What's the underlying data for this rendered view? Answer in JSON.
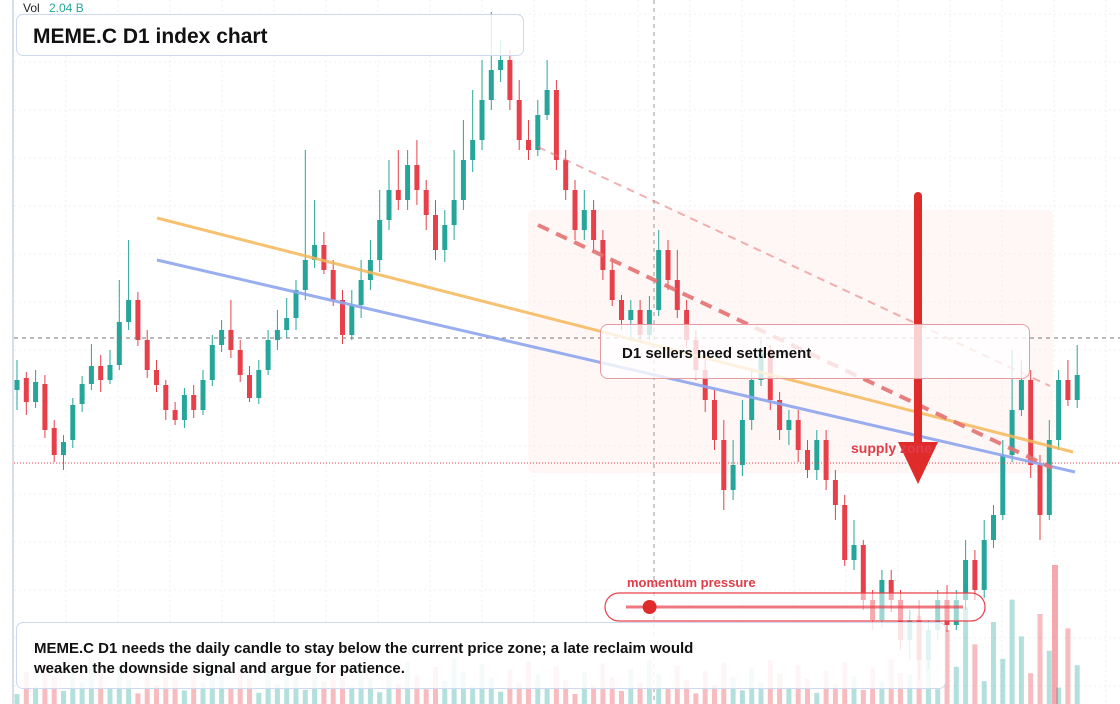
{
  "volume": {
    "label": "Vol",
    "value": "2.04 B"
  },
  "title": "MEME.C D1 index chart",
  "callout": "D1 sellers need settlement",
  "zone_label": "supply zone",
  "momentum_label": "momentum pressure",
  "note": "MEME.C D1 needs the daily candle to stay below the current price zone; a late reclaim would weaken the downside signal and argue for patience.",
  "colors": {
    "up": "#26a69a",
    "down": "#e8404b",
    "orange_trend": "#f5b85a",
    "blue_trend": "#8fa6ee",
    "arrow": "#e02b2b",
    "dashed": "#e57373"
  },
  "icons": {
    "arrow": "down-arrow-icon",
    "slider_knob": "momentum-knob-icon"
  },
  "momentum_level": 0.07,
  "chart_data": {
    "type": "candlestick",
    "symbol": "MEME.C",
    "timeframe": "D1",
    "grid": true,
    "y_reference": {
      "current_price": 338,
      "supply_line": 463
    },
    "candles_description": "daily OHLC with volume; values in price-axis units (relative scale)",
    "candles": [
      [
        0,
        390,
        380,
        410,
        360
      ],
      [
        1,
        378,
        402,
        415,
        372
      ],
      [
        2,
        402,
        382,
        408,
        370
      ],
      [
        3,
        384,
        430,
        438,
        375
      ],
      [
        4,
        428,
        455,
        462,
        420
      ],
      [
        5,
        455,
        442,
        470,
        435
      ],
      [
        6,
        440,
        405,
        448,
        398
      ],
      [
        7,
        404,
        384,
        412,
        376
      ],
      [
        8,
        384,
        366,
        390,
        344
      ],
      [
        9,
        366,
        380,
        392,
        355
      ],
      [
        10,
        380,
        365,
        384,
        350
      ],
      [
        11,
        365,
        322,
        370,
        280
      ],
      [
        12,
        322,
        300,
        330,
        240
      ],
      [
        13,
        300,
        340,
        346,
        292
      ],
      [
        14,
        340,
        370,
        378,
        330
      ],
      [
        15,
        370,
        385,
        392,
        360
      ],
      [
        16,
        385,
        410,
        420,
        380
      ],
      [
        17,
        410,
        420,
        425,
        402
      ],
      [
        18,
        420,
        395,
        428,
        388
      ],
      [
        19,
        395,
        410,
        418,
        385
      ],
      [
        20,
        410,
        380,
        415,
        370
      ],
      [
        21,
        380,
        345,
        386,
        335
      ],
      [
        22,
        345,
        330,
        352,
        320
      ],
      [
        23,
        330,
        350,
        358,
        300
      ],
      [
        24,
        350,
        375,
        382,
        340
      ],
      [
        25,
        375,
        398,
        402,
        366
      ],
      [
        26,
        398,
        370,
        404,
        360
      ],
      [
        27,
        370,
        340,
        375,
        330
      ],
      [
        28,
        340,
        330,
        350,
        310
      ],
      [
        29,
        330,
        318,
        338,
        298
      ],
      [
        30,
        318,
        290,
        330,
        280
      ],
      [
        31,
        290,
        260,
        300,
        150
      ],
      [
        32,
        260,
        245,
        268,
        200
      ],
      [
        33,
        245,
        270,
        274,
        232
      ],
      [
        34,
        270,
        300,
        306,
        260
      ],
      [
        35,
        300,
        335,
        344,
        290
      ],
      [
        36,
        335,
        305,
        340,
        290
      ],
      [
        37,
        305,
        280,
        318,
        260
      ],
      [
        38,
        280,
        260,
        290,
        240
      ],
      [
        39,
        260,
        220,
        272,
        190
      ],
      [
        40,
        220,
        190,
        230,
        160
      ],
      [
        41,
        190,
        200,
        210,
        150
      ],
      [
        42,
        200,
        165,
        210,
        150
      ],
      [
        43,
        165,
        190,
        205,
        140
      ],
      [
        44,
        190,
        215,
        230,
        180
      ],
      [
        45,
        215,
        250,
        260,
        200
      ],
      [
        46,
        250,
        225,
        262,
        210
      ],
      [
        47,
        225,
        200,
        240,
        150
      ],
      [
        48,
        200,
        160,
        210,
        120
      ],
      [
        49,
        160,
        140,
        172,
        90
      ],
      [
        50,
        140,
        100,
        150,
        60
      ],
      [
        51,
        100,
        70,
        110,
        12
      ],
      [
        52,
        70,
        60,
        82,
        40
      ],
      [
        53,
        60,
        100,
        110,
        50
      ],
      [
        54,
        100,
        140,
        150,
        80
      ],
      [
        55,
        140,
        150,
        160,
        120
      ],
      [
        56,
        150,
        115,
        156,
        100
      ],
      [
        57,
        115,
        90,
        120,
        60
      ],
      [
        58,
        90,
        160,
        170,
        80
      ],
      [
        59,
        160,
        190,
        200,
        150
      ],
      [
        60,
        190,
        230,
        240,
        180
      ],
      [
        61,
        230,
        210,
        240,
        190
      ],
      [
        62,
        210,
        240,
        252,
        200
      ],
      [
        63,
        240,
        270,
        280,
        230
      ],
      [
        64,
        270,
        300,
        306,
        260
      ],
      [
        65,
        300,
        320,
        330,
        295
      ],
      [
        66,
        320,
        310,
        340,
        300
      ],
      [
        67,
        310,
        335,
        342,
        300
      ],
      [
        68,
        335,
        310,
        340,
        296
      ],
      [
        69,
        310,
        250,
        316,
        230
      ],
      [
        70,
        250,
        280,
        290,
        240
      ],
      [
        71,
        280,
        310,
        318,
        250
      ],
      [
        72,
        310,
        340,
        348,
        300
      ],
      [
        73,
        340,
        370,
        380,
        330
      ],
      [
        74,
        370,
        400,
        412,
        355
      ],
      [
        75,
        400,
        440,
        450,
        390
      ],
      [
        76,
        440,
        490,
        510,
        420
      ],
      [
        77,
        490,
        465,
        500,
        440
      ],
      [
        78,
        465,
        420,
        476,
        400
      ],
      [
        79,
        420,
        380,
        430,
        370
      ],
      [
        80,
        380,
        350,
        386,
        340
      ],
      [
        81,
        350,
        400,
        410,
        345
      ],
      [
        82,
        400,
        430,
        440,
        392
      ],
      [
        83,
        430,
        420,
        445,
        410
      ],
      [
        84,
        420,
        450,
        462,
        410
      ],
      [
        85,
        450,
        470,
        478,
        440
      ],
      [
        86,
        470,
        440,
        480,
        430
      ],
      [
        87,
        440,
        480,
        490,
        430
      ],
      [
        88,
        480,
        505,
        520,
        470
      ],
      [
        89,
        505,
        560,
        566,
        495
      ],
      [
        90,
        560,
        545,
        570,
        520
      ],
      [
        91,
        545,
        600,
        610,
        540
      ],
      [
        92,
        600,
        620,
        630,
        590
      ],
      [
        93,
        620,
        580,
        628,
        570
      ],
      [
        94,
        580,
        600,
        612,
        570
      ],
      [
        95,
        600,
        640,
        650,
        590
      ],
      [
        96,
        640,
        620,
        660,
        610
      ],
      [
        97,
        620,
        660,
        680,
        600
      ],
      [
        98,
        660,
        630,
        670,
        620
      ],
      [
        99,
        630,
        600,
        640,
        590
      ],
      [
        100,
        600,
        625,
        632,
        585
      ],
      [
        101,
        625,
        600,
        630,
        590
      ],
      [
        102,
        600,
        560,
        610,
        540
      ],
      [
        103,
        560,
        590,
        600,
        550
      ],
      [
        104,
        590,
        540,
        598,
        520
      ],
      [
        105,
        540,
        515,
        548,
        505
      ],
      [
        106,
        515,
        455,
        520,
        440
      ],
      [
        107,
        455,
        410,
        462,
        350
      ],
      [
        108,
        410,
        380,
        416,
        360
      ],
      [
        109,
        380,
        465,
        478,
        370
      ],
      [
        110,
        465,
        515,
        540,
        455
      ],
      [
        111,
        515,
        440,
        520,
        420
      ],
      [
        112,
        440,
        380,
        450,
        370
      ],
      [
        113,
        380,
        400,
        406,
        360
      ],
      [
        114,
        400,
        375,
        408,
        345
      ]
    ]
  }
}
